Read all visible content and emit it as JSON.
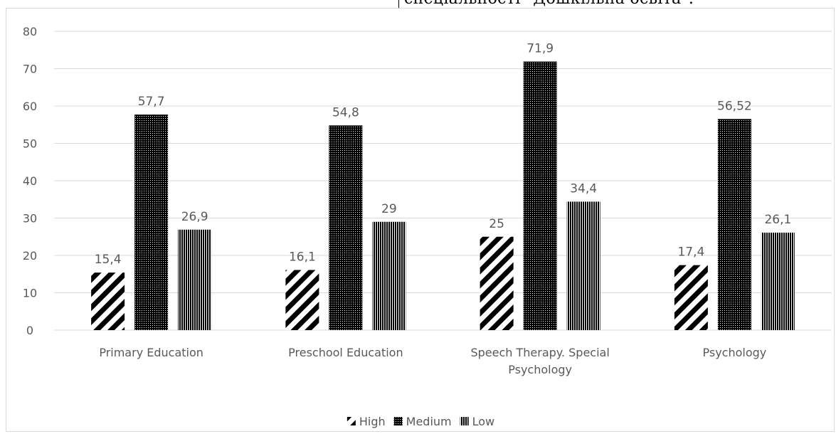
{
  "top_fragment_text": "спеціальності \"Дошкільна освіта\".",
  "chart_data": {
    "type": "bar",
    "title": "",
    "xlabel": "",
    "ylabel": "",
    "categories": [
      "Primary Education",
      "Preschool Education",
      "Speech Therapy. Special Psychology",
      "Psychology"
    ],
    "category_label_lines": [
      [
        "Primary Education"
      ],
      [
        "Preschool Education"
      ],
      [
        "Speech Therapy. Special",
        "Psychology"
      ],
      [
        "Psychology"
      ]
    ],
    "series": [
      {
        "name": "High",
        "values": [
          15.4,
          16.1,
          25,
          17.4
        ],
        "labels": [
          "15,4",
          "16,1",
          "25",
          "17,4"
        ],
        "pattern": "diagonal-stripes"
      },
      {
        "name": "Medium",
        "values": [
          57.7,
          54.8,
          71.9,
          56.52
        ],
        "labels": [
          "57,7",
          "54,8",
          "71,9",
          "56,52"
        ],
        "pattern": "dense-dots"
      },
      {
        "name": "Low",
        "values": [
          26.9,
          29,
          34.4,
          26.1
        ],
        "labels": [
          "26,9",
          "29",
          "34,4",
          "26,1"
        ],
        "pattern": "vertical-stripes"
      }
    ],
    "ylim": [
      0,
      80
    ],
    "yticks": [
      0,
      10,
      20,
      30,
      40,
      50,
      60,
      70,
      80
    ],
    "grid": true,
    "legend_position": "bottom",
    "colors": {
      "bar": "#000000",
      "grid": "#d9d9d9",
      "text": "#595959"
    }
  }
}
